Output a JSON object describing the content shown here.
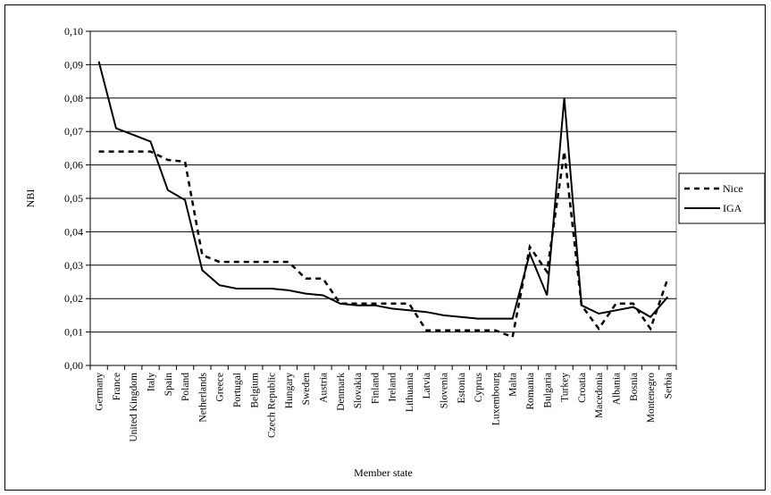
{
  "chart_data": {
    "type": "line",
    "xlabel": "Member state",
    "ylabel": "NBI",
    "ylim": [
      0,
      0.1
    ],
    "yticks": [
      "0,00",
      "0,01",
      "0,02",
      "0,03",
      "0,04",
      "0,05",
      "0,06",
      "0,07",
      "0,08",
      "0,09",
      "0,10"
    ],
    "grid": "horizontal",
    "legend_position": "right",
    "categories": [
      "Germany",
      "France",
      "United Kingdom",
      "Italy",
      "Spain",
      "Poland",
      "Netherlands",
      "Greece",
      "Portugal",
      "Belgium",
      "Czech Republic",
      "Hungary",
      "Sweden",
      "Austria",
      "Denmark",
      "Slovakia",
      "Finland",
      "Ireland",
      "Lithuania",
      "Latvia",
      "Slovenia",
      "Estonia",
      "Cyprus",
      "Luxembourg",
      "Malta",
      "Romania",
      "Bulgaria",
      "Turkey",
      "Croatia",
      "Macedonia",
      "Albania",
      "Bosnia",
      "Montenegro",
      "Serbia"
    ],
    "series": [
      {
        "name": "Nice",
        "style": "dashed",
        "color": "#000000",
        "values": [
          0.064,
          0.064,
          0.064,
          0.064,
          0.0615,
          0.061,
          0.033,
          0.031,
          0.031,
          0.031,
          0.031,
          0.031,
          0.026,
          0.026,
          0.0185,
          0.0185,
          0.0185,
          0.0185,
          0.0185,
          0.0105,
          0.0105,
          0.0105,
          0.0105,
          0.0105,
          0.0085,
          0.0355,
          0.028,
          0.064,
          0.018,
          0.011,
          0.0185,
          0.0185,
          0.011,
          0.026
        ]
      },
      {
        "name": "IGA",
        "style": "solid",
        "color": "#000000",
        "values": [
          0.091,
          0.071,
          0.069,
          0.067,
          0.0525,
          0.0495,
          0.0285,
          0.024,
          0.023,
          0.023,
          0.023,
          0.0225,
          0.0215,
          0.021,
          0.0185,
          0.018,
          0.018,
          0.017,
          0.0165,
          0.016,
          0.015,
          0.0145,
          0.014,
          0.014,
          0.014,
          0.0335,
          0.021,
          0.08,
          0.018,
          0.0155,
          0.0165,
          0.0175,
          0.0145,
          0.0205
        ]
      }
    ]
  }
}
